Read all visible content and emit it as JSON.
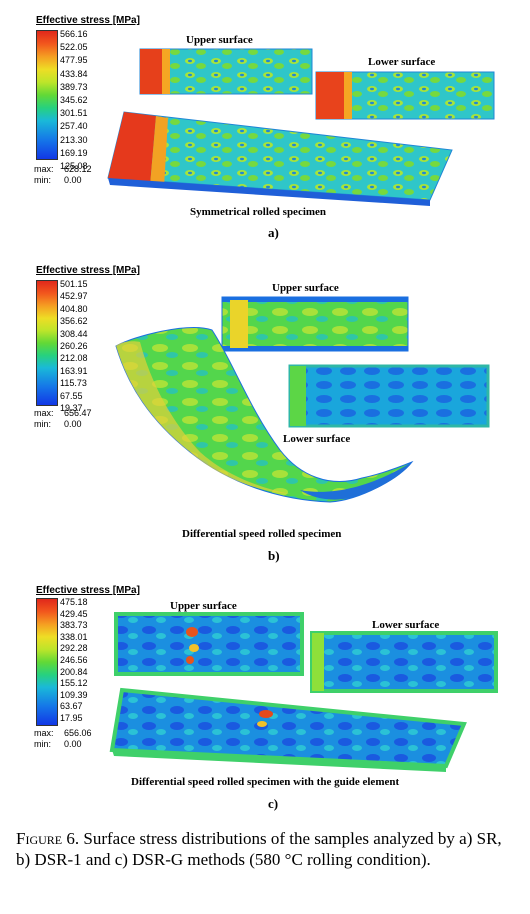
{
  "panel_a": {
    "legend_title": "Effective stress [MPa]",
    "ticks": [
      "566.16",
      "522.05",
      "477.95",
      "433.84",
      "389.73",
      "345.62",
      "301.51",
      "257.40",
      "213.30",
      "169.19",
      "125.08"
    ],
    "max_label": "max:",
    "max_value": "628.12",
    "min_label": "min:",
    "min_value": "0.00",
    "upper_label": "Upper surface",
    "lower_label": "Lower surface",
    "specimen_label": "Symmetrical rolled specimen",
    "sublabel": "a)"
  },
  "panel_b": {
    "legend_title": "Effective stress [MPa]",
    "ticks": [
      "501.15",
      "452.97",
      "404.80",
      "356.62",
      "308.44",
      "260.26",
      "212.08",
      "163.91",
      "115.73",
      "67.55",
      "19.37"
    ],
    "max_label": "max:",
    "max_value": "656.47",
    "min_label": "min:",
    "min_value": "0.00",
    "upper_label": "Upper surface",
    "lower_label": "Lower surface",
    "specimen_label": "Differential speed rolled specimen",
    "sublabel": "b)"
  },
  "panel_c": {
    "legend_title": "Effective stress [MPa]",
    "ticks": [
      "475.18",
      "429.45",
      "383.73",
      "338.01",
      "292.28",
      "246.56",
      "200.84",
      "155.12",
      "109.39",
      "63.67",
      "17.95"
    ],
    "max_label": "max:",
    "max_value": "656.06",
    "min_label": "min:",
    "min_value": "0.00",
    "upper_label": "Upper surface",
    "lower_label": "Lower surface",
    "specimen_label": "Differential speed rolled specimen with the guide element",
    "sublabel": "c)"
  },
  "caption": {
    "figure_label": "Figure 6.",
    "text": "Surface stress distributions of the samples analyzed by a) SR, b) DSR-1 and c) DSR-G methods (580 °C rolling condition)."
  },
  "colors": {
    "high": "#e0281b",
    "mid": "#62d936",
    "low": "#1237e6"
  }
}
